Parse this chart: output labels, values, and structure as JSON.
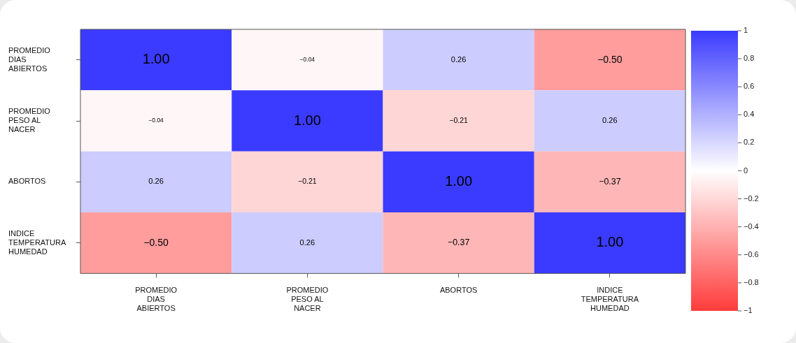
{
  "chart_data": {
    "type": "heatmap",
    "categories": [
      "PROMEDIO DIAS ABIERTOS",
      "PROMEDIO PESO AL NACER",
      "ABORTOS",
      "INDICE TEMPERATURA HUMEDAD"
    ],
    "y_categories": [
      "PROMEDIO DIAS ABIERTOS",
      "PROMEDIO PESO AL NACER",
      "ABORTOS",
      "INDICE TEMPERATURA HUMEDAD"
    ],
    "cells": [
      [
        1.0,
        -0.04,
        0.26,
        -0.5
      ],
      [
        -0.04,
        1.0,
        -0.21,
        0.26
      ],
      [
        0.26,
        -0.21,
        1.0,
        -0.37
      ],
      [
        -0.5,
        0.26,
        -0.37,
        1.0
      ]
    ],
    "cell_labels": [
      [
        "1.00",
        "−0.04",
        "0.26",
        "−0.50"
      ],
      [
        "−0.04",
        "1.00",
        "−0.21",
        "0.26"
      ],
      [
        "0.26",
        "−0.21",
        "1.00",
        "−0.37"
      ],
      [
        "−0.50",
        "0.26",
        "−0.37",
        "1.00"
      ]
    ],
    "clim": [
      -1,
      1
    ],
    "cticks": [
      {
        "value": -1,
        "label": "−1"
      },
      {
        "value": -0.8,
        "label": "−0.8"
      },
      {
        "value": -0.6,
        "label": "−0.6"
      },
      {
        "value": -0.4,
        "label": "−0.4"
      },
      {
        "value": -0.2,
        "label": "−0.2"
      },
      0,
      0.2,
      0.4,
      0.6,
      0.8,
      1
    ]
  }
}
